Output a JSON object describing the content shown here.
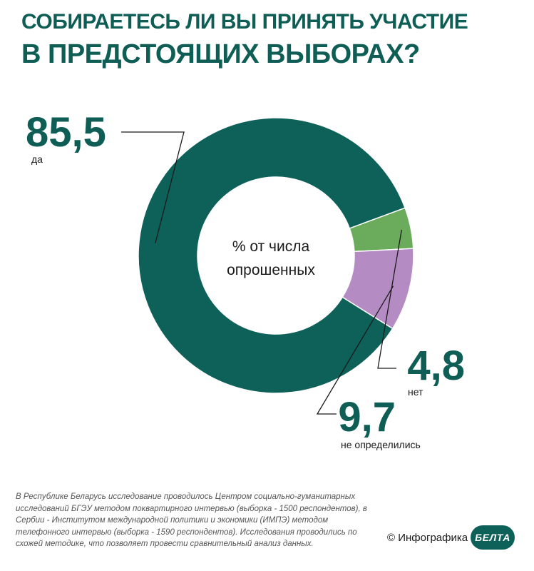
{
  "header": {
    "title_line1": "СОБИРАЕТЕСЬ ЛИ ВЫ ПРИНЯТЬ УЧАСТИЕ",
    "title_line2": "В ПРЕДСТОЯЩИХ ВЫБОРАХ?"
  },
  "colors": {
    "title": "#0f5e56",
    "yes": "#0d6158",
    "no": "#6aac5c",
    "undecided": "#b58bc4",
    "leader_line": "#1a1a1a",
    "logo": "#0d6158"
  },
  "chart_data": {
    "type": "pie",
    "donut": true,
    "center_label": [
      "% от числа",
      "опрошенных"
    ],
    "slices": [
      {
        "label": "да",
        "value": 85.5,
        "display_value": "85,5",
        "color": "#0d6158"
      },
      {
        "label": "нет",
        "value": 4.8,
        "display_value": "4,8",
        "color": "#6aac5c"
      },
      {
        "label": "не определились",
        "value": 9.7,
        "display_value": "9,7",
        "color": "#b58bc4"
      }
    ]
  },
  "footnote": "В Республике Беларусь исследование проводилось Центром социально-гуманитарных исследований БГЭУ методом поквартирного интервью (выборка - 1500 респондентов), в Сербии - Институтом международной политики и экономики (ИМПЭ) методом телефонного интервью (выборка - 1590 респондентов). Исследования проводились по схожей методике, что позволяет провести сравнительный анализ данных.",
  "credit": "© Инфографика",
  "logo_text": "БЕЛТА"
}
